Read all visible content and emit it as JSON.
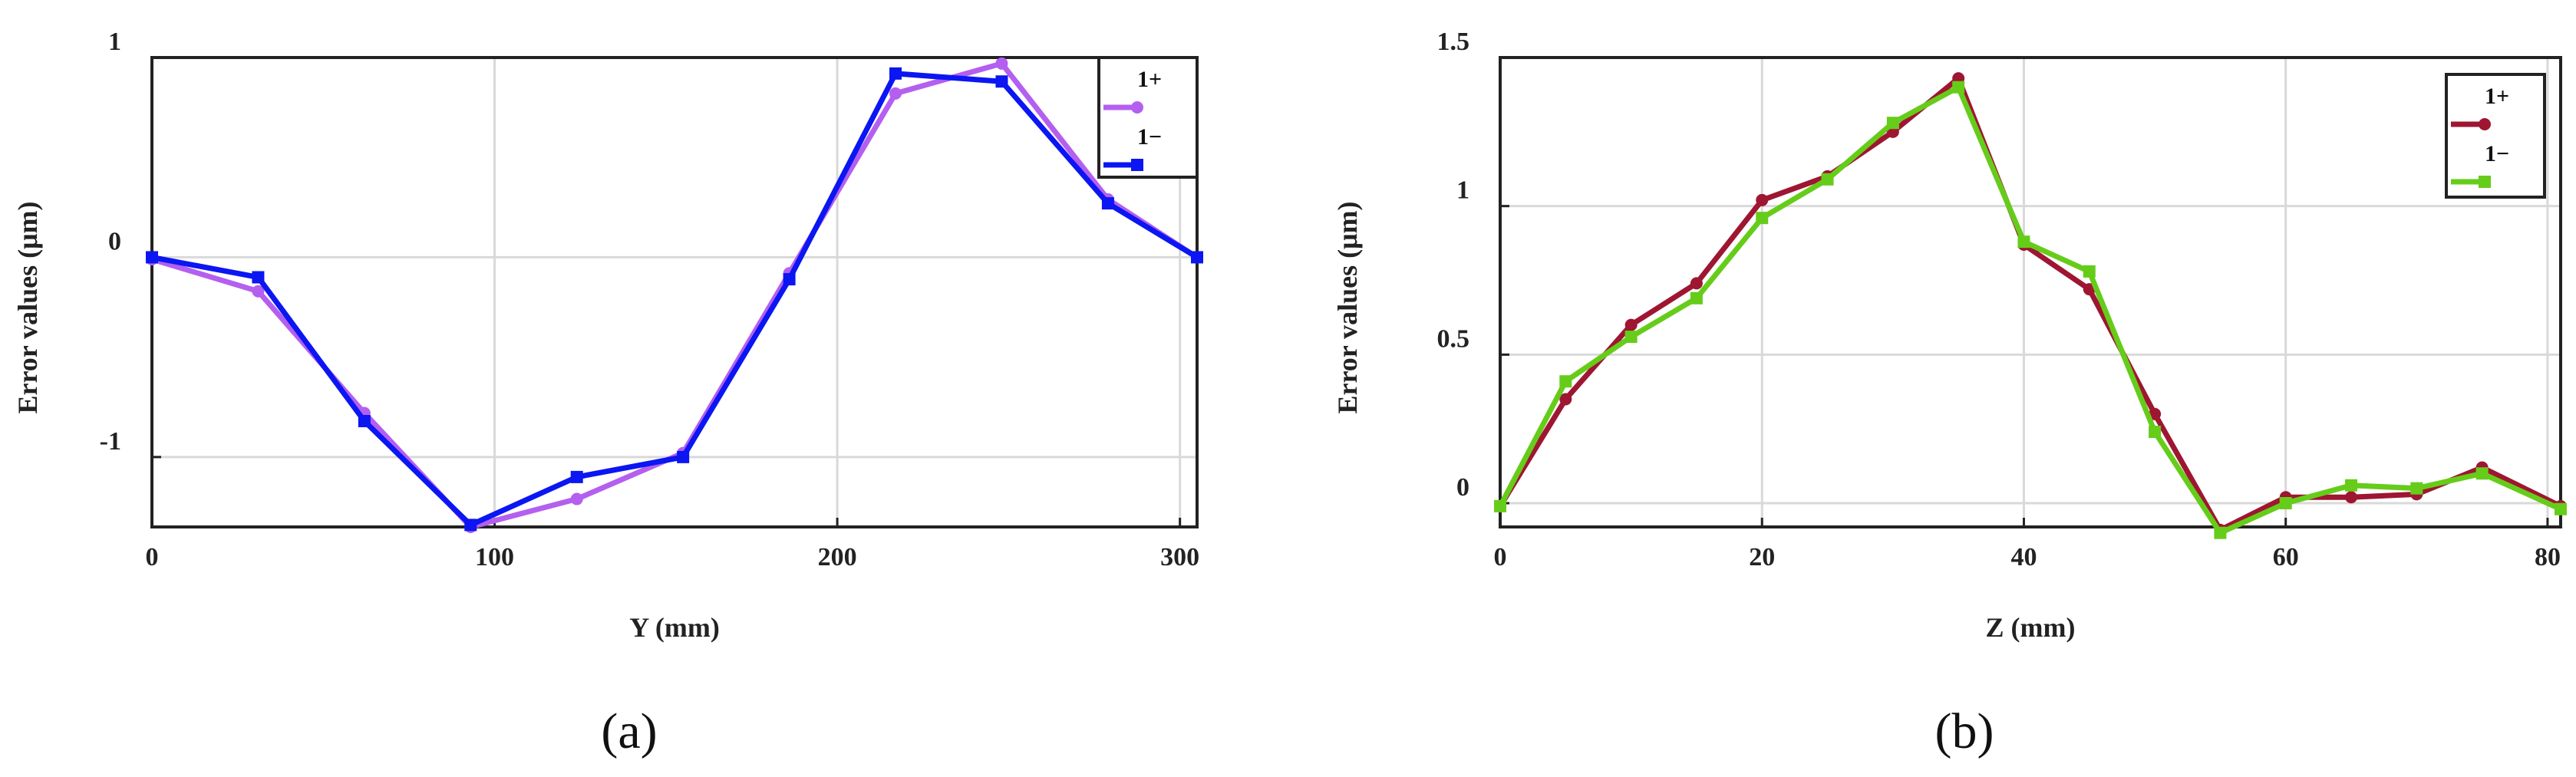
{
  "chart_data": [
    {
      "type": "line",
      "caption": "(a)",
      "xlabel": "Y (mm)",
      "ylabel": "Error values (μm)",
      "xlim": [
        0,
        305
      ],
      "ylim": [
        -1.35,
        1
      ],
      "xticks": [
        0,
        100,
        200,
        300
      ],
      "yticks": [
        -1,
        0,
        1
      ],
      "grid": true,
      "legend_position": "top-right",
      "series": [
        {
          "name": "1+",
          "color": "#b45ff0",
          "marker": "circle",
          "x": [
            0,
            31,
            62,
            93,
            124,
            155,
            186,
            217,
            248,
            279,
            305
          ],
          "y": [
            -0.01,
            -0.17,
            -0.78,
            -1.35,
            -1.21,
            -0.98,
            -0.08,
            0.82,
            0.97,
            0.29,
            -0.0
          ]
        },
        {
          "name": "1−",
          "color": "#0b16f2",
          "marker": "square",
          "x": [
            0,
            31,
            62,
            93,
            124,
            155,
            186,
            217,
            248,
            279,
            305
          ],
          "y": [
            -0.0,
            -0.1,
            -0.82,
            -1.34,
            -1.1,
            -1.0,
            -0.11,
            0.92,
            0.88,
            0.27,
            -0.0
          ]
        }
      ]
    },
    {
      "type": "line",
      "caption": "(b)",
      "xlabel": "Z (mm)",
      "ylabel": "Error values (μm)",
      "xlim": [
        0,
        81
      ],
      "ylim": [
        -0.08,
        1.5
      ],
      "xticks": [
        0,
        20,
        40,
        60,
        80
      ],
      "yticks": [
        0,
        0.5,
        1,
        1.5
      ],
      "ytick_labels": [
        "0",
        "0.5",
        "1",
        "1.5"
      ],
      "grid": true,
      "legend_position": "top-right",
      "series": [
        {
          "name": "1+",
          "color": "#9e1631",
          "marker": "circle",
          "x": [
            0,
            5,
            10,
            15,
            20,
            25,
            30,
            35,
            40,
            45,
            50,
            55,
            60,
            65,
            70,
            75,
            81
          ],
          "y": [
            -0.01,
            0.35,
            0.6,
            0.74,
            1.02,
            1.1,
            1.25,
            1.43,
            0.87,
            0.72,
            0.3,
            -0.09,
            0.02,
            0.02,
            0.03,
            0.12,
            -0.01
          ]
        },
        {
          "name": "1−",
          "color": "#66cc1a",
          "marker": "square",
          "x": [
            0,
            5,
            10,
            15,
            20,
            25,
            30,
            35,
            40,
            45,
            50,
            55,
            60,
            65,
            70,
            75,
            81
          ],
          "y": [
            -0.01,
            0.41,
            0.56,
            0.69,
            0.96,
            1.09,
            1.28,
            1.4,
            0.88,
            0.78,
            0.24,
            -0.1,
            0.0,
            0.06,
            0.05,
            0.1,
            -0.02
          ]
        }
      ]
    }
  ]
}
